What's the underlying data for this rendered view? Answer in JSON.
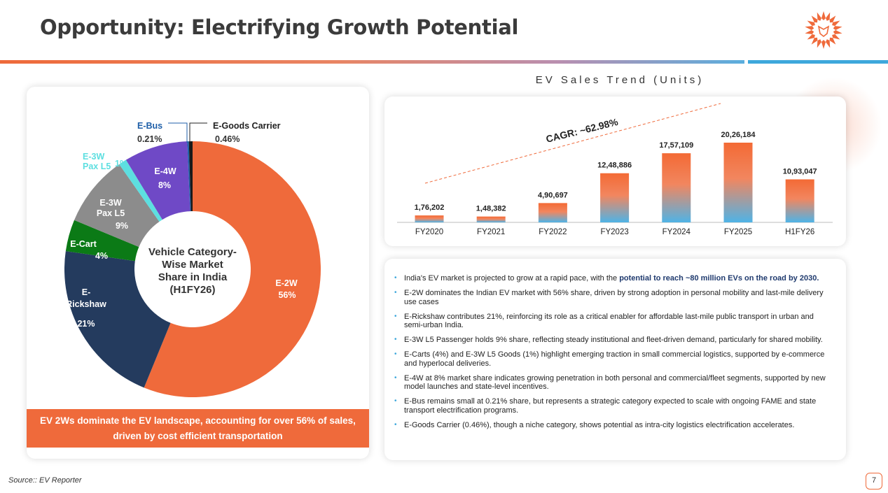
{
  "header": {
    "title": "Opportunity: Electrifying Growth Potential"
  },
  "donut": {
    "center_label": [
      "Vehicle Category-",
      "Wise Market",
      "Share in India",
      "(H1FY26)"
    ],
    "slices": [
      {
        "name": "E-2W",
        "label": "E-2W",
        "value_label": "56%",
        "value": 56,
        "color": "#ef6a3b"
      },
      {
        "name": "E-Rickshaw",
        "label": "E-\nRickshaw",
        "value_label": "21%",
        "value": 21,
        "color": "#243b5e"
      },
      {
        "name": "E-Cart",
        "label": "E-Cart",
        "value_label": "4%",
        "value": 4,
        "color": "#0b7a16"
      },
      {
        "name": "E-3W Pax L5",
        "label": "E-3W\nPax L5",
        "value_label": "9%",
        "value": 9,
        "color": "#8c8c8c"
      },
      {
        "name": "E-3W Pax L5 (1%)",
        "label": "E-3W\nPax L5",
        "value_label": "1%",
        "value": 1,
        "color": "#5ddfe0"
      },
      {
        "name": "E-4W",
        "label": "E-4W",
        "value_label": "8%",
        "value": 8,
        "color": "#6f49c6"
      },
      {
        "name": "E-Bus",
        "label": "E-Bus",
        "value_label": "0.21%",
        "value": 0.21,
        "color": "#1f5fa8"
      },
      {
        "name": "E-Goods Carrier",
        "label": "E-Goods Carrier",
        "value_label": "0.46%",
        "value": 0.46,
        "color": "#1a1a1a"
      }
    ]
  },
  "banner": {
    "line1": "EV 2Ws dominate the EV landscape, accounting for over 56% of sales,",
    "line2": "driven by cost efficient transportation"
  },
  "chart_data": {
    "type": "bar",
    "title": "EV Sales Trend (Units)",
    "categories": [
      "FY2020",
      "FY2021",
      "FY2022",
      "FY2023",
      "FY2024",
      "FY2025",
      "H1FY26"
    ],
    "values": [
      176202,
      148382,
      490697,
      1248886,
      1757109,
      2026184,
      1093047
    ],
    "value_labels": [
      "1,76,202",
      "1,48,382",
      "4,90,697",
      "12,48,886",
      "17,57,109",
      "20,26,184",
      "10,93,047"
    ],
    "annotation": "CAGR: ~62.98%",
    "xlabel": "",
    "ylabel": "",
    "ylim": [
      0,
      2026184
    ]
  },
  "bullets": [
    {
      "text": "India's EV market is projected to grow at a rapid pace, with the ",
      "highlight": "potential to reach ~80 million EVs on the road by 2030",
      "tail": "."
    },
    {
      "text": "E-2W dominates the Indian EV market with 56% share, driven by strong adoption in personal mobility and last-mile delivery use cases"
    },
    {
      "text": "E-Rickshaw contributes 21%, reinforcing its role as a critical enabler for affordable last-mile public transport in urban and semi-urban India."
    },
    {
      "text": "E-3W L5 Passenger holds 9% share, reflecting steady institutional and fleet-driven demand, particularly for shared mobility."
    },
    {
      "text": "E-Carts (4%) and E-3W L5 Goods (1%) highlight emerging traction in small commercial logistics, supported by e-commerce and hyperlocal deliveries."
    },
    {
      "text": "E-4W at 8% market share indicates growing penetration in both personal and commercial/fleet segments, supported by new model launches and state-level incentives."
    },
    {
      "text": "E-Bus remains small at 0.21% share, but represents a strategic category expected to scale with ongoing FAME and state transport electrification programs."
    },
    {
      "text": "E-Goods Carrier (0.46%), though a niche category, shows potential as intra-city logistics electrification accelerates."
    }
  ],
  "footer": {
    "source": "Source:: EV Reporter",
    "page": "7"
  }
}
